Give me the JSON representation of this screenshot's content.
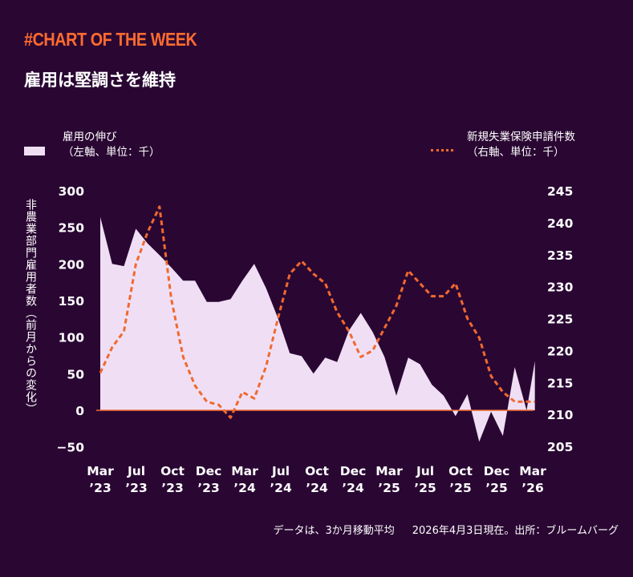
{
  "brand": "#CHART OF THE WEEK",
  "title": "雇用は堅調さを維持",
  "legend": {
    "left_line1": "雇用の伸び",
    "left_line2": "（左軸、単位：千）",
    "right_line1": "新規失業保険申請件数",
    "right_line2": "（右軸、単位：千）"
  },
  "ylabel_left": "非農業部門雇用者数（前月からの変化）",
  "footer": {
    "note": "データは、3か月移動平均",
    "source": "2026年4月3日現在。出所：ブルームバーグ"
  },
  "colors": {
    "background": "#2a0733",
    "area": "#f0dff4",
    "line": "#f0692f",
    "zero": "#f0692f"
  },
  "chart_data": {
    "type": "area",
    "x_tick_labels": [
      [
        "Mar",
        "’23"
      ],
      [
        "Jul",
        "’23"
      ],
      [
        "Oct",
        "’23"
      ],
      [
        "Dec",
        "’23"
      ],
      [
        "Mar",
        "’24"
      ],
      [
        "Jul",
        "’24"
      ],
      [
        "Oct",
        "’24"
      ],
      [
        "Dec",
        "’24"
      ],
      [
        "Mar",
        "’25"
      ],
      [
        "Jul",
        "’25"
      ],
      [
        "Oct",
        "’25"
      ],
      [
        "Dec",
        "’25"
      ],
      [
        "Mar",
        "’26"
      ]
    ],
    "y_left": {
      "ticks": [
        300,
        250,
        200,
        150,
        100,
        50,
        0,
        -50
      ],
      "range": [
        -50,
        300
      ]
    },
    "y_right": {
      "ticks": [
        245,
        240,
        235,
        230,
        225,
        220,
        215,
        210,
        205
      ],
      "range": [
        205,
        245
      ]
    },
    "series": [
      {
        "axis": "left",
        "style": "area",
        "x": [
          0,
          1,
          2,
          3,
          4,
          5,
          6,
          7,
          8,
          9,
          10,
          11,
          12,
          13,
          14,
          15,
          16,
          17,
          18,
          19,
          20,
          21,
          22,
          23,
          24,
          25,
          26,
          27,
          28,
          29,
          30,
          31,
          32,
          33,
          34,
          35,
          36
        ],
        "values": [
          264,
          200,
          197,
          248,
          228,
          212,
          195,
          177,
          177,
          148,
          148,
          152,
          177,
          200,
          167,
          126,
          78,
          74,
          50,
          72,
          66,
          109,
          133,
          107,
          73,
          20,
          72,
          63,
          35,
          20,
          -8,
          22,
          -43,
          -2,
          -35,
          59,
          0
        ],
        "extra_points": [
          [
            36.7,
            67
          ]
        ]
      },
      {
        "axis": "right",
        "style": "dashed-line",
        "x": [
          0,
          1,
          2,
          3,
          4,
          5,
          6,
          7,
          8,
          9,
          10,
          11,
          12,
          13,
          14,
          15,
          16,
          17,
          18,
          19,
          20,
          21,
          22,
          23,
          24,
          25,
          26,
          27,
          28,
          29,
          30,
          31,
          32,
          33,
          34,
          35,
          36,
          36.7
        ],
        "values": [
          216.5,
          220.5,
          223.0,
          233.5,
          238.5,
          242.5,
          228.0,
          219.0,
          214.5,
          212.0,
          211.5,
          209.5,
          213.5,
          212.5,
          217.5,
          225.0,
          232.0,
          234.0,
          232.0,
          230.5,
          226.0,
          223.0,
          219.0,
          220.0,
          223.5,
          227.0,
          232.5,
          230.5,
          228.5,
          228.5,
          230.5,
          225.0,
          222.0,
          216.0,
          213.5,
          212.0,
          212.0,
          212.0
        ]
      }
    ]
  }
}
